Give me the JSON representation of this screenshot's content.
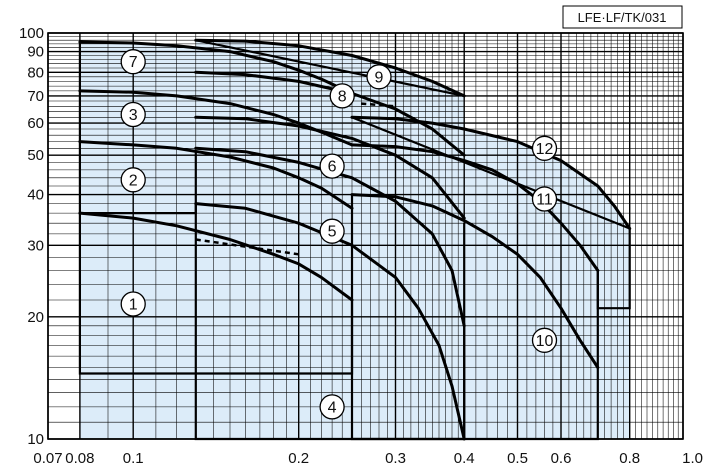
{
  "chart_data": {
    "type": "line",
    "title": "",
    "xlabel": "",
    "ylabel": "",
    "x_scale": "log",
    "y_scale": "log",
    "xlim": [
      0.07,
      1.0
    ],
    "ylim": [
      10,
      100
    ],
    "grid": true,
    "code": "LFE·LF/TK/031",
    "x_ticks": [
      "0.07",
      "0.08",
      "0.1",
      "0.2",
      "0.3",
      "0.4",
      "0.5",
      "0.6",
      "0.8",
      "1.0"
    ],
    "y_ticks": [
      "10",
      "20",
      "30",
      "40",
      "50",
      "60",
      "70",
      "80",
      "90",
      "100"
    ],
    "regions": [
      {
        "label": "1",
        "outline": [
          [
            0.08,
            36
          ],
          [
            0.08,
            14.5
          ],
          [
            0.25,
            14.5
          ],
          [
            0.25,
            22
          ]
        ]
      },
      {
        "label": "4",
        "outline": [
          [
            0.13,
            38
          ],
          [
            0.13,
            10
          ],
          [
            0.4,
            10
          ],
          [
            0.4,
            19
          ]
        ]
      },
      {
        "label": "10",
        "outline": [
          [
            0.25,
            40
          ],
          [
            0.25,
            10
          ],
          [
            0.4,
            10
          ],
          [
            0.4,
            34
          ],
          [
            0.4,
            10
          ],
          [
            0.7,
            10
          ],
          [
            0.7,
            26
          ]
        ]
      },
      {
        "label": "2",
        "outline": [
          [
            0.08,
            54
          ],
          [
            0.08,
            36
          ],
          [
            0.13,
            36
          ],
          [
            0.13,
            51
          ]
        ]
      },
      {
        "label": "3",
        "outline": [
          [
            0.08,
            72
          ],
          [
            0.08,
            54
          ]
        ]
      },
      {
        "label": "7",
        "outline": [
          [
            0.08,
            95
          ],
          [
            0.08,
            72
          ]
        ]
      },
      {
        "label": "9",
        "outline": [
          [
            0.13,
            96
          ],
          [
            0.4,
            70
          ]
        ]
      },
      {
        "label": "12",
        "outline": [
          [
            0.25,
            62
          ],
          [
            0.8,
            33
          ],
          [
            0.8,
            21
          ],
          [
            0.7,
            21
          ],
          [
            0.7,
            26
          ]
        ]
      }
    ],
    "series": [
      {
        "label": "1",
        "x": [
          0.08,
          0.1,
          0.12,
          0.15,
          0.18,
          0.2,
          0.22,
          0.25
        ],
        "y": [
          36,
          35,
          33.5,
          31,
          28.5,
          27,
          25,
          22
        ]
      },
      {
        "label": "2",
        "x": [
          0.08,
          0.1,
          0.12,
          0.15,
          0.18,
          0.2,
          0.22,
          0.25
        ],
        "y": [
          54,
          53,
          52,
          49.5,
          46.5,
          44,
          41.5,
          37
        ]
      },
      {
        "label": "3",
        "x": [
          0.08,
          0.1,
          0.12,
          0.15,
          0.18,
          0.2,
          0.22,
          0.25
        ],
        "y": [
          72,
          71.5,
          70,
          67,
          63,
          60,
          57,
          53
        ]
      },
      {
        "label": "7",
        "x": [
          0.08,
          0.1,
          0.12,
          0.15,
          0.18,
          0.2,
          0.22,
          0.25
        ],
        "y": [
          95,
          94.5,
          93,
          90,
          85,
          81,
          77,
          71
        ]
      },
      {
        "label": "4",
        "x": [
          0.13,
          0.16,
          0.2,
          0.25,
          0.3,
          0.33,
          0.36,
          0.38,
          0.4
        ],
        "y": [
          38,
          37,
          34,
          30,
          25,
          21,
          17,
          13.5,
          10
        ]
      },
      {
        "label": "5",
        "x": [
          0.13,
          0.16,
          0.2,
          0.25,
          0.3,
          0.35,
          0.38,
          0.4
        ],
        "y": [
          52,
          51,
          48,
          44,
          38.5,
          32,
          26,
          19
        ]
      },
      {
        "label": "6",
        "x": [
          0.13,
          0.16,
          0.2,
          0.25,
          0.3,
          0.35,
          0.4
        ],
        "y": [
          62,
          61.5,
          59,
          55,
          50,
          44,
          35
        ]
      },
      {
        "label": "8",
        "x": [
          0.13,
          0.16,
          0.2,
          0.25,
          0.3,
          0.35,
          0.4
        ],
        "y": [
          80,
          79,
          76,
          71,
          65,
          58,
          50
        ]
      },
      {
        "label": "9",
        "x": [
          0.13,
          0.16,
          0.2,
          0.25,
          0.3,
          0.35,
          0.4
        ],
        "y": [
          96,
          95.5,
          93,
          88,
          82,
          76,
          70
        ]
      },
      {
        "label": "10",
        "x": [
          0.25,
          0.3,
          0.35,
          0.4,
          0.45,
          0.5,
          0.55,
          0.6,
          0.65,
          0.7
        ],
        "y": [
          40,
          39.5,
          37.5,
          34.5,
          31.5,
          28.5,
          25,
          21,
          17.5,
          15
        ]
      },
      {
        "label": "11",
        "x": [
          0.25,
          0.3,
          0.35,
          0.4,
          0.45,
          0.5,
          0.55,
          0.6,
          0.65,
          0.7
        ],
        "y": [
          53,
          52.5,
          51,
          48.5,
          46,
          42.5,
          38.5,
          34,
          30,
          26
        ]
      },
      {
        "label": "12",
        "x": [
          0.25,
          0.3,
          0.35,
          0.4,
          0.5,
          0.6,
          0.7,
          0.75,
          0.8
        ],
        "y": [
          62,
          61.5,
          60,
          58,
          54,
          48.5,
          42,
          37.5,
          33
        ]
      }
    ],
    "dashed": [
      {
        "x": [
          0.13,
          0.2
        ],
        "y": [
          31,
          28.5
        ]
      },
      {
        "x": [
          0.26,
          0.3
        ],
        "y": [
          67,
          66
        ]
      }
    ],
    "circle_labels": [
      {
        "text": "7",
        "x": 0.1,
        "y": 85
      },
      {
        "text": "3",
        "x": 0.1,
        "y": 63
      },
      {
        "text": "2",
        "x": 0.1,
        "y": 43.5
      },
      {
        "text": "1",
        "x": 0.1,
        "y": 21.5
      },
      {
        "text": "9",
        "x": 0.28,
        "y": 78
      },
      {
        "text": "8",
        "x": 0.24,
        "y": 70
      },
      {
        "text": "6",
        "x": 0.23,
        "y": 47
      },
      {
        "text": "5",
        "x": 0.23,
        "y": 32.5
      },
      {
        "text": "4",
        "x": 0.23,
        "y": 12
      },
      {
        "text": "12",
        "x": 0.56,
        "y": 52
      },
      {
        "text": "11",
        "x": 0.56,
        "y": 39
      },
      {
        "text": "10",
        "x": 0.56,
        "y": 17.5
      }
    ],
    "colors": {
      "fill": "#dcecf9",
      "curve": "#000000",
      "grid": "#000000",
      "tick_text": "#111111"
    }
  }
}
